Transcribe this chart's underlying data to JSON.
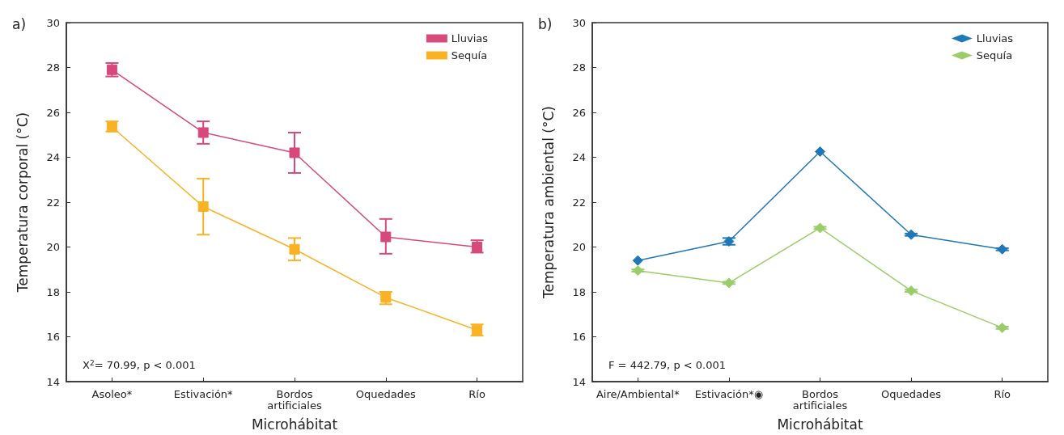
{
  "chart_data": [
    {
      "type": "line",
      "title": "a)",
      "xlabel": "Microhábitat",
      "ylabel": "Temperatura corporal (°C)",
      "categories": [
        "Asoleo*",
        "Estivación*",
        "Bordos\nartificiales",
        "Oquedades",
        "Río"
      ],
      "ylim": [
        14,
        30
      ],
      "yticks": [
        14,
        16,
        18,
        20,
        22,
        24,
        26,
        28,
        30
      ],
      "legend": "top right",
      "marker": "square",
      "grid": false,
      "annotations": [
        "X$^{2}$= 70.99, p < 0.001"
      ],
      "series": [
        {
          "name": "Lluvias",
          "color": "#d6497a",
          "values": [
            27.9,
            25.1,
            24.2,
            20.45,
            20.0
          ],
          "errors": [
            [
              27.6,
              28.2
            ],
            [
              24.6,
              25.6
            ],
            [
              23.3,
              25.1
            ],
            [
              19.7,
              21.25
            ],
            [
              19.75,
              20.3
            ]
          ]
        },
        {
          "name": "Sequía",
          "color": "#f9b224",
          "values": [
            25.35,
            21.8,
            19.9,
            17.75,
            16.3
          ],
          "errors": [
            [
              25.15,
              25.6
            ],
            [
              20.55,
              23.05
            ],
            [
              19.4,
              20.4
            ],
            [
              17.45,
              18.0
            ],
            [
              16.05,
              16.55
            ]
          ]
        }
      ]
    },
    {
      "type": "line",
      "title": "b)",
      "xlabel": "Microhábitat",
      "ylabel": "Temperatura ambiental (°C)",
      "categories": [
        "Aire/Ambiental*",
        "Estivación*◉",
        "Bordos\nartificiales",
        "Oquedades",
        "Río"
      ],
      "ylim": [
        14,
        30
      ],
      "yticks": [
        14,
        16,
        18,
        20,
        22,
        24,
        26,
        28,
        30
      ],
      "legend": "top right",
      "marker": "diamond",
      "grid": false,
      "annotations": [
        "F = 442.79, p < 0.001"
      ],
      "series": [
        {
          "name": "Lluvias",
          "color": "#1f78b8",
          "values": [
            19.4,
            20.25,
            24.25,
            20.55,
            19.9
          ],
          "errors": [
            null,
            [
              20.1,
              20.4
            ],
            null,
            [
              20.5,
              20.6
            ],
            [
              19.85,
              19.95
            ]
          ]
        },
        {
          "name": "Sequía",
          "color": "#9acd6a",
          "values": [
            18.95,
            18.4,
            20.85,
            18.05,
            16.4
          ],
          "errors": [
            [
              18.9,
              19.0
            ],
            [
              18.35,
              18.45
            ],
            [
              20.8,
              20.9
            ],
            [
              18.0,
              18.1
            ],
            [
              16.35,
              16.45
            ]
          ]
        }
      ]
    }
  ]
}
